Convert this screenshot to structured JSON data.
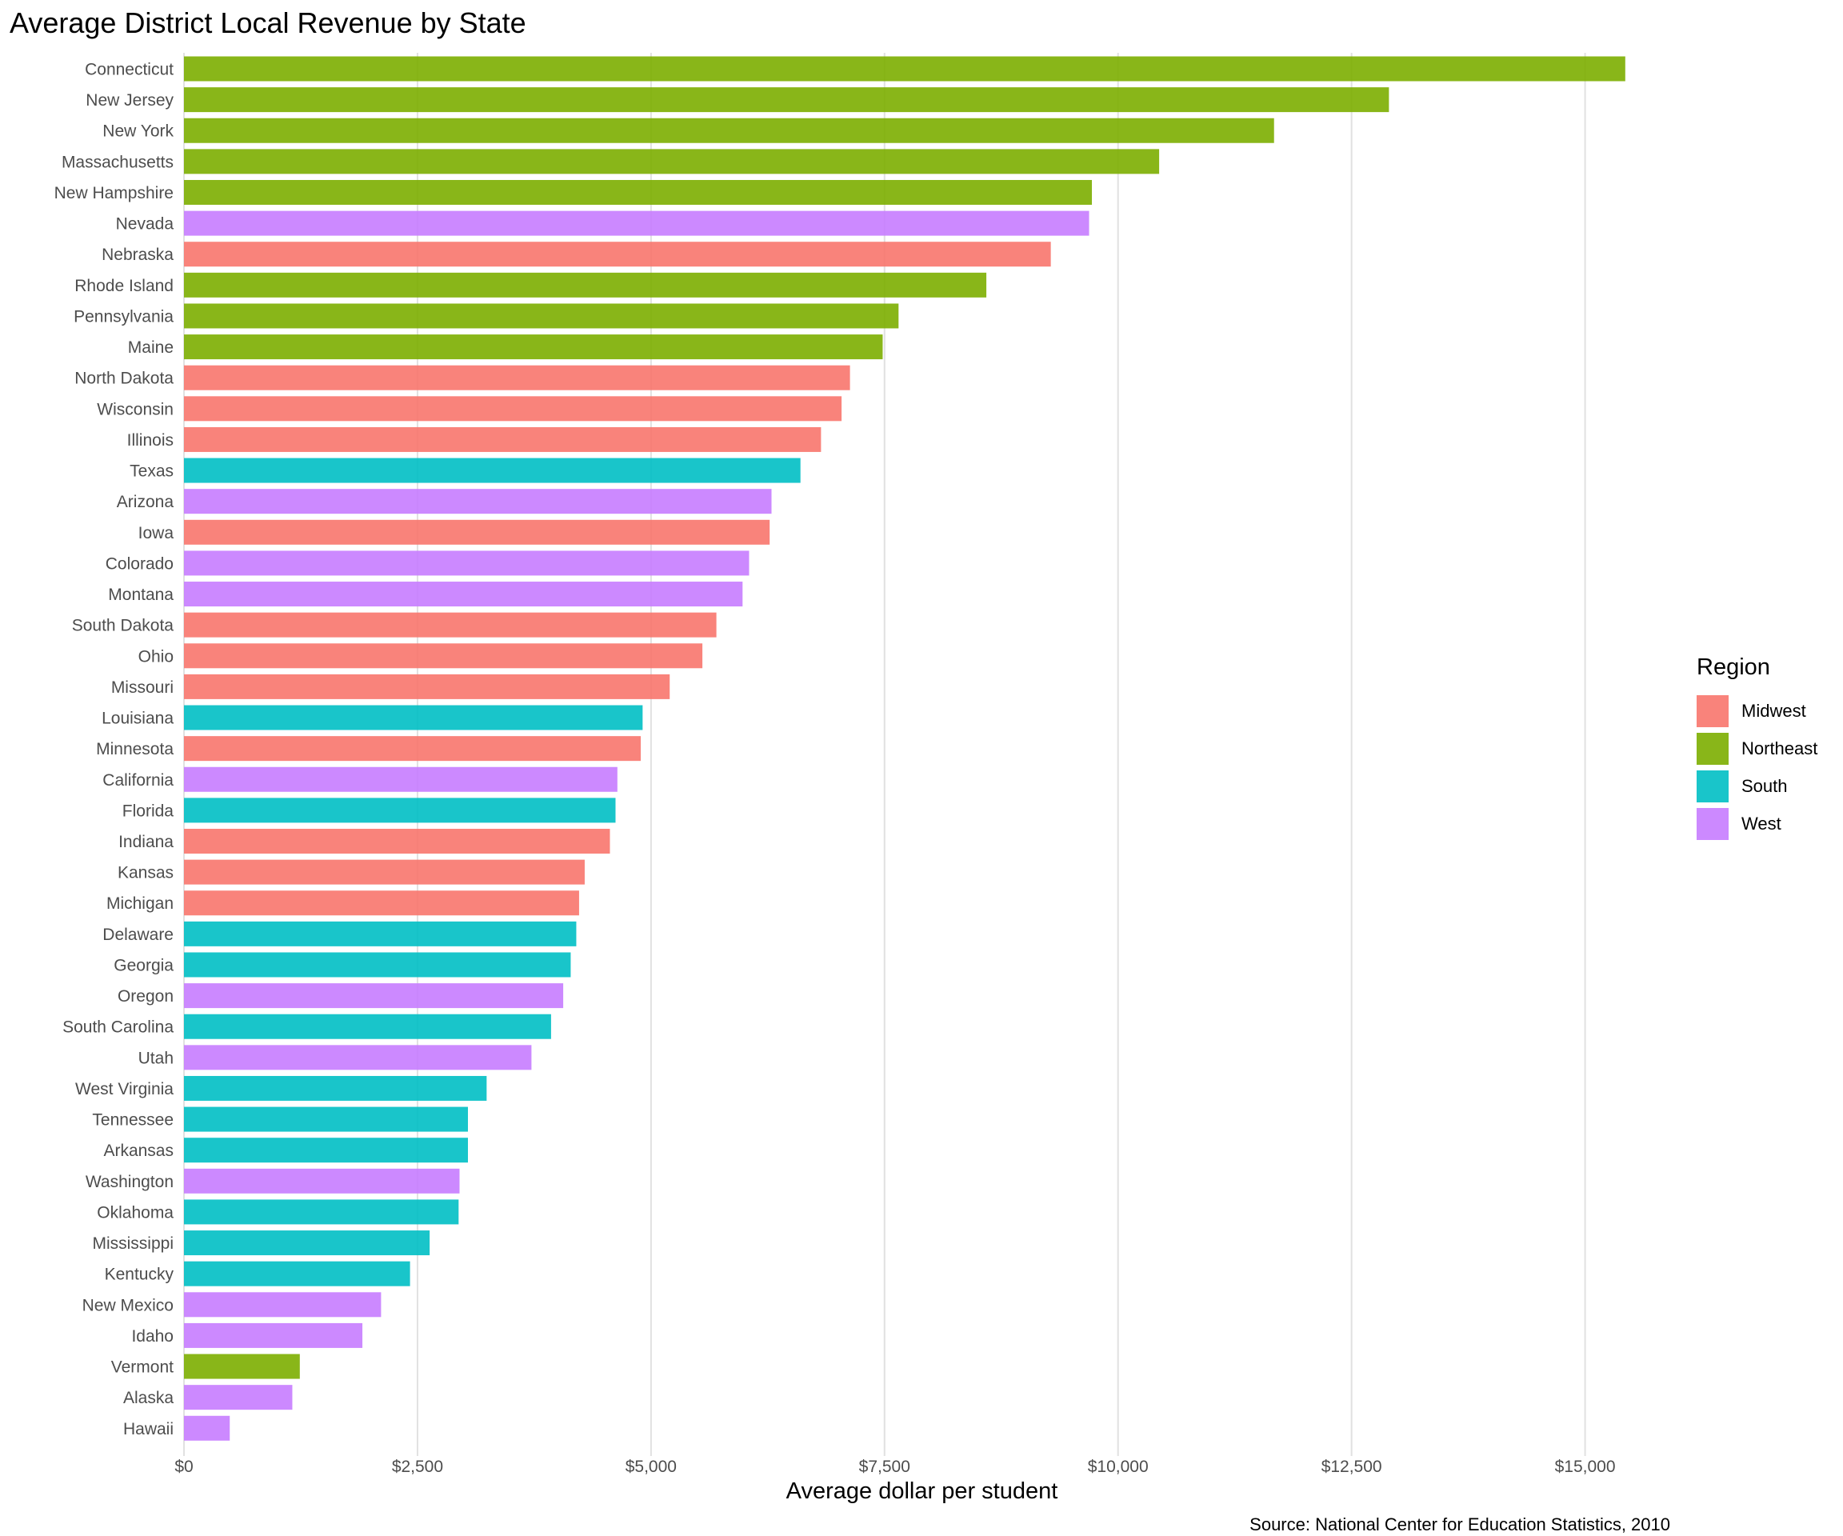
{
  "chart_data": {
    "type": "bar",
    "orientation": "horizontal",
    "title": "Average District Local Revenue by State",
    "xlabel": "Average dollar per student",
    "ylabel": "",
    "caption": "Source: National Center for Education Statistics, 2010",
    "xlim": [
      0,
      15800
    ],
    "xticks": [
      0,
      2500,
      5000,
      7500,
      10000,
      12500,
      15000
    ],
    "xtick_labels": [
      "$0",
      "$2,500",
      "$5,000",
      "$7,500",
      "$10,000",
      "$12,500",
      "$15,000"
    ],
    "grid": true,
    "legend": {
      "title": "Region",
      "position": "right",
      "entries": [
        {
          "label": "Midwest",
          "color": "#F8766D"
        },
        {
          "label": "Northeast",
          "color": "#7CAE00"
        },
        {
          "label": "South",
          "color": "#00BFC4"
        },
        {
          "label": "West",
          "color": "#C77CFF"
        }
      ]
    },
    "categories": [
      "Connecticut",
      "New Jersey",
      "New York",
      "Massachusetts",
      "New Hampshire",
      "Nevada",
      "Nebraska",
      "Rhode Island",
      "Pennsylvania",
      "Maine",
      "North Dakota",
      "Wisconsin",
      "Illinois",
      "Texas",
      "Arizona",
      "Iowa",
      "Colorado",
      "Montana",
      "South Dakota",
      "Ohio",
      "Missouri",
      "Louisiana",
      "Minnesota",
      "California",
      "Florida",
      "Indiana",
      "Kansas",
      "Michigan",
      "Delaware",
      "Georgia",
      "Oregon",
      "South Carolina",
      "Utah",
      "West Virginia",
      "Tennessee",
      "Arkansas",
      "Washington",
      "Oklahoma",
      "Mississippi",
      "Kentucky",
      "New Mexico",
      "Idaho",
      "Vermont",
      "Alaska",
      "Hawaii"
    ],
    "values": [
      15430,
      12900,
      11670,
      10440,
      9720,
      9690,
      9280,
      8590,
      7650,
      7480,
      7130,
      7040,
      6820,
      6600,
      6290,
      6270,
      6050,
      5980,
      5700,
      5550,
      5200,
      4910,
      4890,
      4640,
      4620,
      4560,
      4290,
      4230,
      4200,
      4140,
      4060,
      3930,
      3720,
      3240,
      3040,
      3040,
      2950,
      2940,
      2630,
      2420,
      2110,
      1910,
      1240,
      1160,
      490
    ],
    "regions": [
      "Northeast",
      "Northeast",
      "Northeast",
      "Northeast",
      "Northeast",
      "West",
      "Midwest",
      "Northeast",
      "Northeast",
      "Northeast",
      "Midwest",
      "Midwest",
      "Midwest",
      "South",
      "West",
      "Midwest",
      "West",
      "West",
      "Midwest",
      "Midwest",
      "Midwest",
      "South",
      "Midwest",
      "West",
      "South",
      "Midwest",
      "Midwest",
      "Midwest",
      "South",
      "South",
      "West",
      "South",
      "West",
      "South",
      "South",
      "South",
      "West",
      "South",
      "South",
      "South",
      "West",
      "West",
      "Northeast",
      "West",
      "West"
    ]
  }
}
